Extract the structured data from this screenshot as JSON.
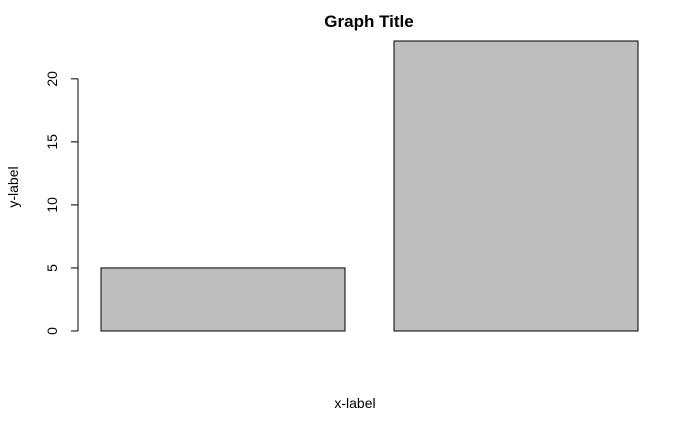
{
  "chart_data": {
    "type": "bar",
    "title": "Graph Title",
    "xlabel": "x-label",
    "ylabel": "y-label",
    "categories": [
      "",
      ""
    ],
    "values": [
      5,
      23
    ],
    "ylim": [
      0,
      23
    ],
    "yticks": [
      0,
      5,
      10,
      15,
      20
    ],
    "ytick_labels": [
      "0",
      "5",
      "10",
      "15",
      "20"
    ],
    "bar_color": "#bebebe",
    "edge_color": "#000000",
    "grid": false,
    "legend": "none"
  }
}
